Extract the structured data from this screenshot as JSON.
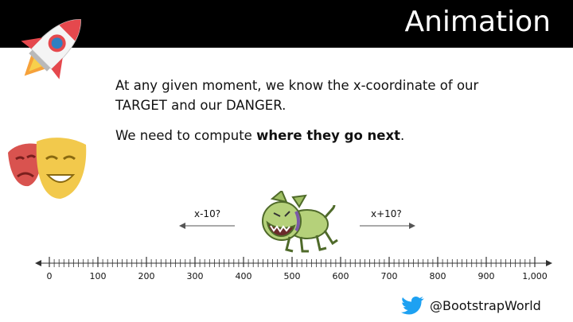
{
  "header": {
    "title": "Animation"
  },
  "content": {
    "line1": "At any given moment, we know the x-coordinate of our TARGET and our DANGER.",
    "line2_prefix": "We need to compute ",
    "line2_bold": "where they go next",
    "line2_suffix": "."
  },
  "diagram": {
    "left_label": "x-10?",
    "right_label": "x+10?",
    "ticks": [
      "0",
      "100",
      "200",
      "300",
      "400",
      "500",
      "600",
      "700",
      "800",
      "900",
      "1,000"
    ]
  },
  "footer": {
    "handle": "@BootstrapWorld",
    "icon": "twitter-bird-icon"
  },
  "colors": {
    "header_bg": "#000000",
    "twitter_blue": "#1DA1F2",
    "dog_green": "#b5d17a"
  }
}
